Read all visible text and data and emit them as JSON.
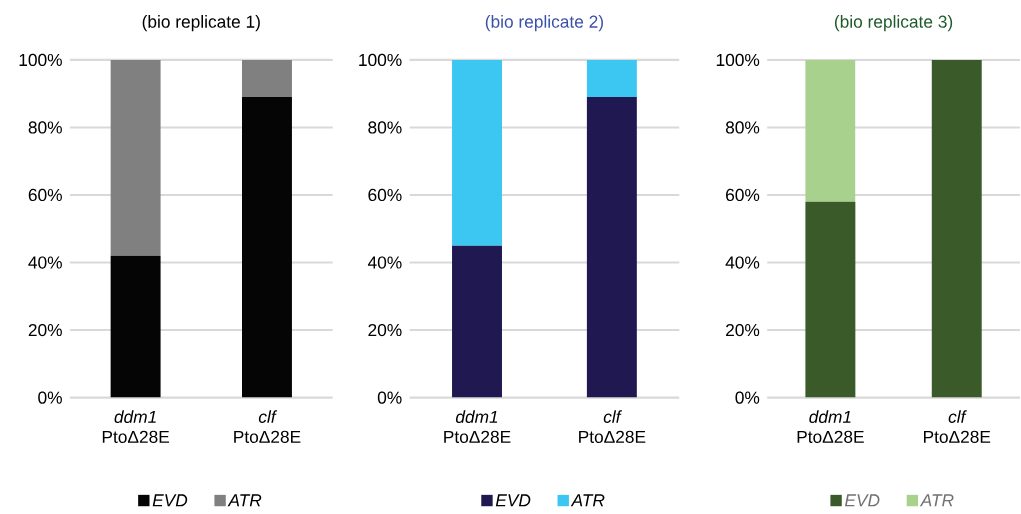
{
  "chart_data": [
    {
      "type": "bar",
      "title": "(bio replicate 1)",
      "categories": [
        "*ddm1* PtoΔ28E",
        "*clf* PtoΔ28E"
      ],
      "stacked": true,
      "ylim": [
        0,
        100
      ],
      "yticks": [
        {
          "value": 0,
          "label": "0%"
        },
        {
          "value": 20,
          "label": "20%"
        },
        {
          "value": 40,
          "label": "40%"
        },
        {
          "value": 60,
          "label": "60%"
        },
        {
          "value": 80,
          "label": "80%"
        },
        {
          "value": 100,
          "label": "100%"
        }
      ],
      "grid": "y",
      "legend": "bottom",
      "series": [
        {
          "name": "EVD",
          "color": "#050505",
          "values": [
            42,
            89
          ]
        },
        {
          "name": "ATR",
          "color": "#808080",
          "values": [
            58,
            11
          ]
        }
      ]
    },
    {
      "type": "bar",
      "title": "(bio replicate 2)",
      "categories": [
        "*ddm1* PtoΔ28E",
        "*clf* PtoΔ28E"
      ],
      "stacked": true,
      "ylim": [
        0,
        100
      ],
      "yticks": [
        {
          "value": 0,
          "label": "0%"
        },
        {
          "value": 20,
          "label": "20%"
        },
        {
          "value": 40,
          "label": "40%"
        },
        {
          "value": 60,
          "label": "60%"
        },
        {
          "value": 80,
          "label": "80%"
        },
        {
          "value": 100,
          "label": "100%"
        }
      ],
      "grid": "y",
      "legend": "bottom",
      "series": [
        {
          "name": "EVD",
          "color": "#201850",
          "values": [
            45,
            89
          ]
        },
        {
          "name": "ATR",
          "color": "#3cc6f2",
          "values": [
            55,
            11
          ]
        }
      ]
    },
    {
      "type": "bar",
      "title": "(bio replicate 3)",
      "categories": [
        "*ddm1* PtoΔ28E",
        "*clf* PtoΔ28E"
      ],
      "stacked": true,
      "ylim": [
        0,
        100
      ],
      "yticks": [
        {
          "value": 0,
          "label": "0%"
        },
        {
          "value": 20,
          "label": "20%"
        },
        {
          "value": 40,
          "label": "40%"
        },
        {
          "value": 60,
          "label": "60%"
        },
        {
          "value": 80,
          "label": "80%"
        },
        {
          "value": 100,
          "label": "100%"
        }
      ],
      "grid": "y",
      "legend": "bottom",
      "series": [
        {
          "name": "EVD",
          "color": "#3b5a2a",
          "values": [
            58,
            100
          ]
        },
        {
          "name": "ATR",
          "color": "#a9d18e",
          "values": [
            42,
            0
          ]
        }
      ]
    }
  ]
}
